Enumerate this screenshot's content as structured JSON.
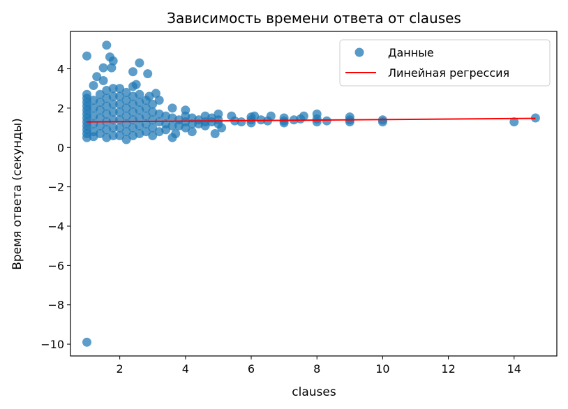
{
  "chart_data": {
    "type": "scatter",
    "title": "Зависимость времени ответа от clauses",
    "xlabel": "clauses",
    "ylabel": "Время ответа (секунды)",
    "xlim": [
      0.5,
      15.3
    ],
    "ylim": [
      -10.6,
      5.9
    ],
    "xticks": [
      2,
      4,
      6,
      8,
      10,
      12,
      14
    ],
    "yticks": [
      -10,
      -8,
      -6,
      -4,
      -2,
      0,
      2,
      4
    ],
    "xtick_labels": [
      "2",
      "4",
      "6",
      "8",
      "10",
      "12",
      "14"
    ],
    "ytick_labels": [
      "−10",
      "−8",
      "−6",
      "−4",
      "−2",
      "0",
      "2",
      "4"
    ],
    "grid": false,
    "legend": {
      "position": "top-right",
      "entries": [
        {
          "label": "Данные",
          "kind": "marker",
          "color": "#1f77b4"
        },
        {
          "label": "Линейная регрессия",
          "kind": "line",
          "color": "#ff0000"
        }
      ]
    },
    "series": [
      {
        "name": "Данные",
        "kind": "scatter",
        "color": "#1f77b4",
        "points": [
          [
            1.0,
            -9.9
          ],
          [
            1.0,
            4.65
          ],
          [
            1.6,
            5.2
          ],
          [
            1.7,
            4.6
          ],
          [
            1.8,
            4.4
          ],
          [
            2.6,
            4.3
          ],
          [
            1.5,
            4.05
          ],
          [
            1.75,
            4.05
          ],
          [
            2.4,
            3.85
          ],
          [
            2.85,
            3.75
          ],
          [
            1.3,
            3.6
          ],
          [
            1.5,
            3.4
          ],
          [
            1.2,
            3.15
          ],
          [
            2.5,
            3.2
          ],
          [
            2.4,
            3.1
          ],
          [
            3.1,
            2.75
          ],
          [
            3.2,
            2.4
          ],
          [
            2.9,
            2.6
          ],
          [
            1.0,
            2.7
          ],
          [
            1.0,
            2.5
          ],
          [
            1.0,
            2.3
          ],
          [
            1.0,
            2.1
          ],
          [
            1.0,
            1.9
          ],
          [
            1.0,
            1.7
          ],
          [
            1.0,
            1.5
          ],
          [
            1.0,
            1.3
          ],
          [
            1.0,
            1.1
          ],
          [
            1.0,
            0.9
          ],
          [
            1.0,
            0.7
          ],
          [
            1.0,
            0.5
          ],
          [
            1.2,
            2.4
          ],
          [
            1.2,
            2.0
          ],
          [
            1.2,
            1.6
          ],
          [
            1.2,
            1.2
          ],
          [
            1.2,
            0.8
          ],
          [
            1.2,
            0.55
          ],
          [
            1.4,
            2.7
          ],
          [
            1.4,
            2.3
          ],
          [
            1.4,
            1.9
          ],
          [
            1.4,
            1.5
          ],
          [
            1.4,
            1.1
          ],
          [
            1.4,
            0.7
          ],
          [
            1.6,
            2.9
          ],
          [
            1.6,
            2.5
          ],
          [
            1.6,
            2.1
          ],
          [
            1.6,
            1.7
          ],
          [
            1.6,
            1.3
          ],
          [
            1.6,
            0.9
          ],
          [
            1.6,
            0.5
          ],
          [
            1.8,
            3.0
          ],
          [
            1.8,
            2.6
          ],
          [
            1.8,
            2.2
          ],
          [
            1.8,
            1.8
          ],
          [
            1.8,
            1.4
          ],
          [
            1.8,
            1.0
          ],
          [
            1.8,
            0.6
          ],
          [
            2.0,
            3.0
          ],
          [
            2.0,
            2.6
          ],
          [
            2.0,
            2.2
          ],
          [
            2.0,
            1.8
          ],
          [
            2.0,
            1.4
          ],
          [
            2.0,
            1.0
          ],
          [
            2.0,
            0.6
          ],
          [
            2.2,
            2.8
          ],
          [
            2.2,
            2.4
          ],
          [
            2.2,
            2.0
          ],
          [
            2.2,
            1.6
          ],
          [
            2.2,
            1.2
          ],
          [
            2.2,
            0.8
          ],
          [
            2.2,
            0.4
          ],
          [
            2.4,
            2.6
          ],
          [
            2.4,
            2.2
          ],
          [
            2.4,
            1.8
          ],
          [
            2.4,
            1.4
          ],
          [
            2.4,
            1.0
          ],
          [
            2.4,
            0.6
          ],
          [
            2.6,
            2.7
          ],
          [
            2.6,
            2.3
          ],
          [
            2.6,
            1.9
          ],
          [
            2.6,
            1.5
          ],
          [
            2.6,
            1.1
          ],
          [
            2.6,
            0.7
          ],
          [
            2.8,
            2.4
          ],
          [
            2.8,
            2.0
          ],
          [
            2.8,
            1.6
          ],
          [
            2.8,
            1.2
          ],
          [
            2.8,
            0.8
          ],
          [
            3.0,
            2.2
          ],
          [
            3.0,
            1.8
          ],
          [
            3.0,
            1.4
          ],
          [
            3.0,
            1.0
          ],
          [
            3.0,
            0.6
          ],
          [
            3.2,
            1.7
          ],
          [
            3.2,
            1.3
          ],
          [
            3.2,
            0.8
          ],
          [
            3.4,
            1.6
          ],
          [
            3.4,
            1.2
          ],
          [
            3.4,
            0.9
          ],
          [
            3.6,
            2.0
          ],
          [
            3.6,
            1.5
          ],
          [
            3.6,
            1.1
          ],
          [
            3.6,
            0.5
          ],
          [
            3.7,
            0.7
          ],
          [
            3.8,
            1.4
          ],
          [
            3.8,
            1.1
          ],
          [
            4.0,
            1.9
          ],
          [
            4.0,
            1.6
          ],
          [
            4.0,
            1.3
          ],
          [
            4.0,
            1.0
          ],
          [
            4.2,
            1.5
          ],
          [
            4.2,
            1.2
          ],
          [
            4.2,
            0.8
          ],
          [
            4.4,
            1.4
          ],
          [
            4.4,
            1.2
          ],
          [
            4.6,
            1.6
          ],
          [
            4.6,
            1.3
          ],
          [
            4.6,
            1.1
          ],
          [
            4.8,
            1.5
          ],
          [
            4.8,
            1.3
          ],
          [
            4.9,
            0.7
          ],
          [
            5.0,
            1.7
          ],
          [
            5.0,
            1.4
          ],
          [
            5.0,
            1.2
          ],
          [
            5.1,
            1.0
          ],
          [
            5.4,
            1.6
          ],
          [
            5.5,
            1.35
          ],
          [
            5.7,
            1.3
          ],
          [
            6.0,
            1.55
          ],
          [
            6.0,
            1.4
          ],
          [
            6.0,
            1.25
          ],
          [
            6.1,
            1.6
          ],
          [
            6.3,
            1.4
          ],
          [
            6.5,
            1.35
          ],
          [
            6.6,
            1.6
          ],
          [
            7.0,
            1.5
          ],
          [
            7.0,
            1.35
          ],
          [
            7.0,
            1.25
          ],
          [
            7.3,
            1.4
          ],
          [
            7.5,
            1.45
          ],
          [
            7.6,
            1.6
          ],
          [
            8.0,
            1.7
          ],
          [
            8.0,
            1.45
          ],
          [
            8.0,
            1.3
          ],
          [
            8.3,
            1.35
          ],
          [
            9.0,
            1.55
          ],
          [
            9.0,
            1.4
          ],
          [
            9.0,
            1.3
          ],
          [
            10.0,
            1.4
          ],
          [
            10.0,
            1.3
          ],
          [
            14.0,
            1.3
          ],
          [
            14.65,
            1.5
          ]
        ]
      },
      {
        "name": "Линейная регрессия",
        "kind": "line",
        "color": "#ff0000",
        "points": [
          [
            1.0,
            1.3
          ],
          [
            14.65,
            1.48
          ]
        ]
      }
    ]
  }
}
